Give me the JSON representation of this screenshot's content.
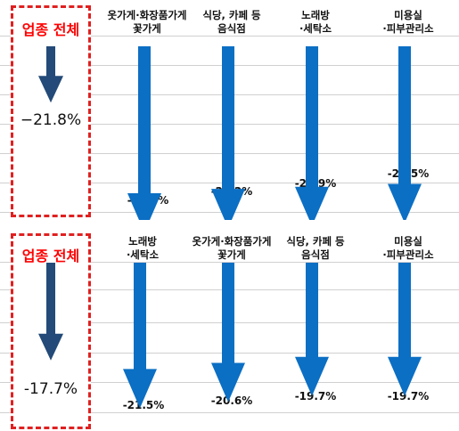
{
  "colors": {
    "arrow": "#0b6fc4",
    "total_arrow": "#234a78",
    "highlight": "#e02020",
    "grid": "#d0d0d0"
  },
  "chart_data": [
    {
      "type": "bar",
      "total": {
        "label": "업종 전체",
        "value": -21.8,
        "value_label": "−21.8%"
      },
      "categories": [
        "옷가게·화장품가게\n꽃가게",
        "식당, 카페 등\n음식점",
        "노래방\n·세탁소",
        "미용실\n·피부관리소"
      ],
      "values": [
        -25.8,
        -25.2,
        -24.9,
        -24.5
      ],
      "value_labels": [
        "-25.8%",
        "-25.2%",
        "-24.9%",
        "-24.5%"
      ],
      "grid": true
    },
    {
      "type": "bar",
      "total": {
        "label": "업종 전체",
        "value": -17.7,
        "value_label": "-17.7%"
      },
      "categories": [
        "노래방\n·세탁소",
        "옷가게·화장품가게\n꽃가게",
        "식당, 카페 등\n음식점",
        "미용실\n·피부관리소"
      ],
      "values": [
        -21.5,
        -20.6,
        -19.7,
        -19.7
      ],
      "value_labels": [
        "-21.5%",
        "-20.6%",
        "-19.7%",
        "-19.7%"
      ],
      "grid": true
    }
  ]
}
